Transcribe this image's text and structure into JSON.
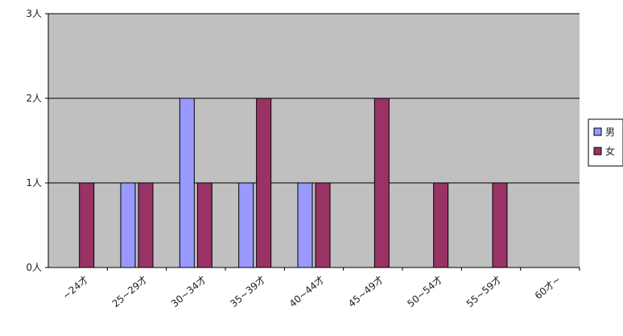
{
  "chart_data": {
    "type": "bar",
    "categories": [
      "~24才",
      "25~29才",
      "30~34才",
      "35~39才",
      "40~44才",
      "45~49才",
      "50~54才",
      "55~59才",
      "60才~"
    ],
    "series": [
      {
        "name": "男",
        "color": "#9999ff",
        "values": [
          0,
          1,
          2,
          1,
          1,
          0,
          0,
          0,
          0
        ]
      },
      {
        "name": "女",
        "color": "#993366",
        "values": [
          1,
          1,
          1,
          2,
          1,
          2,
          1,
          1,
          0
        ]
      }
    ],
    "y_ticks": [
      "0人",
      "1人",
      "2人",
      "3人"
    ],
    "ylim": [
      0,
      3
    ],
    "grid": true,
    "plot_background": "#c0c0c0",
    "legend_position": "right",
    "title": "",
    "xlabel": "",
    "ylabel": ""
  }
}
